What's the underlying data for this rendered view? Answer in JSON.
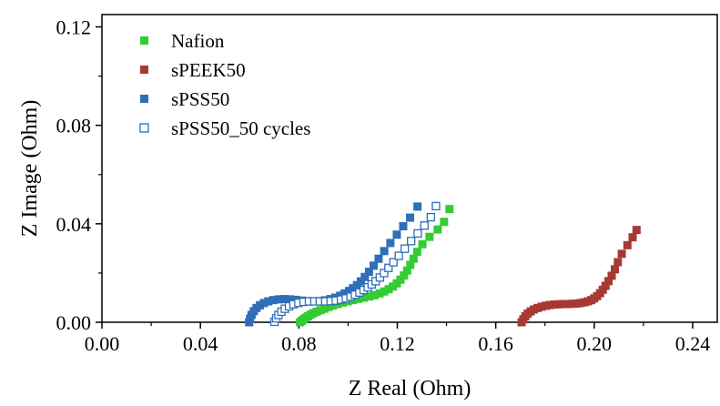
{
  "chart_data": {
    "type": "scatter",
    "title": "",
    "xlabel": "Z Real (Ohm)",
    "ylabel": "Z Image (Ohm)",
    "xlim": [
      0.0,
      0.25
    ],
    "ylim": [
      0.0,
      0.125
    ],
    "xticks": [
      "0.00",
      "0.04",
      "0.08",
      "0.12",
      "0.16",
      "0.20",
      "0.24"
    ],
    "yticks": [
      "0.00",
      "0.04",
      "0.08",
      "0.12"
    ],
    "xtick_values": [
      0.0,
      0.04,
      0.08,
      0.12,
      0.16,
      0.2,
      0.24
    ],
    "ytick_values": [
      0.0,
      0.04,
      0.08,
      0.12
    ],
    "grid": false,
    "legend_position": "top-left",
    "series": [
      {
        "name": "Nafion",
        "color": "#33cc33",
        "marker": "filled-square",
        "points": [
          [
            0.0805,
            0.0
          ],
          [
            0.0812,
            0.0006
          ],
          [
            0.082,
            0.0012
          ],
          [
            0.0828,
            0.0018
          ],
          [
            0.0837,
            0.0024
          ],
          [
            0.0848,
            0.0031
          ],
          [
            0.086,
            0.0037
          ],
          [
            0.0873,
            0.0043
          ],
          [
            0.0888,
            0.0049
          ],
          [
            0.0904,
            0.0055
          ],
          [
            0.0921,
            0.0062
          ],
          [
            0.0939,
            0.0068
          ],
          [
            0.0958,
            0.0074
          ],
          [
            0.0978,
            0.008
          ],
          [
            0.0999,
            0.0085
          ],
          [
            0.102,
            0.009
          ],
          [
            0.1042,
            0.0095
          ],
          [
            0.1064,
            0.01
          ],
          [
            0.1086,
            0.0105
          ],
          [
            0.1108,
            0.011
          ],
          [
            0.1128,
            0.0117
          ],
          [
            0.1147,
            0.0125
          ],
          [
            0.1165,
            0.0134
          ],
          [
            0.1182,
            0.0145
          ],
          [
            0.1198,
            0.0158
          ],
          [
            0.1213,
            0.0173
          ],
          [
            0.1227,
            0.019
          ],
          [
            0.124,
            0.021
          ],
          [
            0.1253,
            0.0233
          ],
          [
            0.1266,
            0.0258
          ],
          [
            0.1281,
            0.0286
          ],
          [
            0.1302,
            0.0317
          ],
          [
            0.1331,
            0.0347
          ],
          [
            0.1364,
            0.0377
          ],
          [
            0.139,
            0.0408
          ],
          [
            0.1412,
            0.046
          ]
        ]
      },
      {
        "name": "sPEEK50",
        "color": "#a63a32",
        "marker": "filled-square",
        "points": [
          [
            0.1705,
            0.0
          ],
          [
            0.1712,
            0.0012
          ],
          [
            0.172,
            0.0024
          ],
          [
            0.173,
            0.0035
          ],
          [
            0.1742,
            0.0044
          ],
          [
            0.1755,
            0.0052
          ],
          [
            0.177,
            0.0058
          ],
          [
            0.1786,
            0.0063
          ],
          [
            0.1803,
            0.0067
          ],
          [
            0.182,
            0.007
          ],
          [
            0.1838,
            0.0072
          ],
          [
            0.1856,
            0.0073
          ],
          [
            0.1874,
            0.0074
          ],
          [
            0.1892,
            0.0074
          ],
          [
            0.191,
            0.0075
          ],
          [
            0.1928,
            0.0076
          ],
          [
            0.1945,
            0.0078
          ],
          [
            0.196,
            0.0081
          ],
          [
            0.1975,
            0.0085
          ],
          [
            0.1988,
            0.009
          ],
          [
            0.2,
            0.0097
          ],
          [
            0.2012,
            0.0106
          ],
          [
            0.2024,
            0.0118
          ],
          [
            0.2035,
            0.0132
          ],
          [
            0.2046,
            0.0148
          ],
          [
            0.2058,
            0.0167
          ],
          [
            0.2071,
            0.0189
          ],
          [
            0.2084,
            0.0215
          ],
          [
            0.2096,
            0.0244
          ],
          [
            0.2112,
            0.0278
          ],
          [
            0.2135,
            0.0313
          ],
          [
            0.2156,
            0.0345
          ],
          [
            0.2172,
            0.0375
          ]
        ]
      },
      {
        "name": "sPSS50",
        "color": "#2e6fb8",
        "marker": "filled-square",
        "points": [
          [
            0.0598,
            0.0
          ],
          [
            0.0602,
            0.0015
          ],
          [
            0.0608,
            0.003
          ],
          [
            0.0617,
            0.0045
          ],
          [
            0.0628,
            0.0058
          ],
          [
            0.0642,
            0.0069
          ],
          [
            0.0658,
            0.0078
          ],
          [
            0.0676,
            0.0085
          ],
          [
            0.0696,
            0.009
          ],
          [
            0.0718,
            0.0093
          ],
          [
            0.074,
            0.0094
          ],
          [
            0.0764,
            0.0093
          ],
          [
            0.0788,
            0.0091
          ],
          [
            0.0812,
            0.0088
          ],
          [
            0.0836,
            0.0086
          ],
          [
            0.086,
            0.0085
          ],
          [
            0.0884,
            0.0086
          ],
          [
            0.0906,
            0.0089
          ],
          [
            0.0928,
            0.0094
          ],
          [
            0.0948,
            0.01
          ],
          [
            0.0968,
            0.0108
          ],
          [
            0.0986,
            0.0117
          ],
          [
            0.1004,
            0.0127
          ],
          [
            0.102,
            0.0138
          ],
          [
            0.1036,
            0.0151
          ],
          [
            0.1052,
            0.0166
          ],
          [
            0.1068,
            0.0184
          ],
          [
            0.1085,
            0.0205
          ],
          [
            0.1104,
            0.023
          ],
          [
            0.1124,
            0.0258
          ],
          [
            0.1147,
            0.0289
          ],
          [
            0.1172,
            0.0322
          ],
          [
            0.1198,
            0.0356
          ],
          [
            0.1224,
            0.039
          ],
          [
            0.1252,
            0.0425
          ],
          [
            0.1282,
            0.047
          ]
        ]
      },
      {
        "name": "sPSS50_50 cycles",
        "color": "#2e6fb8",
        "marker": "open-square",
        "points": [
          [
            0.0703,
            0.0
          ],
          [
            0.071,
            0.0014
          ],
          [
            0.0719,
            0.0028
          ],
          [
            0.0731,
            0.0041
          ],
          [
            0.0745,
            0.0053
          ],
          [
            0.0762,
            0.0063
          ],
          [
            0.078,
            0.0071
          ],
          [
            0.08,
            0.0077
          ],
          [
            0.0821,
            0.0081
          ],
          [
            0.0843,
            0.0083
          ],
          [
            0.0865,
            0.0083
          ],
          [
            0.0887,
            0.0083
          ],
          [
            0.0909,
            0.0083
          ],
          [
            0.0931,
            0.0084
          ],
          [
            0.0952,
            0.0086
          ],
          [
            0.0973,
            0.009
          ],
          [
            0.0993,
            0.0095
          ],
          [
            0.1012,
            0.0102
          ],
          [
            0.103,
            0.011
          ],
          [
            0.1048,
            0.0119
          ],
          [
            0.1065,
            0.0129
          ],
          [
            0.1082,
            0.014
          ],
          [
            0.1098,
            0.0152
          ],
          [
            0.1114,
            0.0165
          ],
          [
            0.1131,
            0.018
          ],
          [
            0.1148,
            0.0198
          ],
          [
            0.1166,
            0.0219
          ],
          [
            0.1186,
            0.0242
          ],
          [
            0.1208,
            0.0268
          ],
          [
            0.1232,
            0.0297
          ],
          [
            0.1258,
            0.0328
          ],
          [
            0.1285,
            0.0359
          ],
          [
            0.1312,
            0.0391
          ],
          [
            0.1338,
            0.0425
          ],
          [
            0.1359,
            0.047
          ]
        ]
      }
    ]
  }
}
